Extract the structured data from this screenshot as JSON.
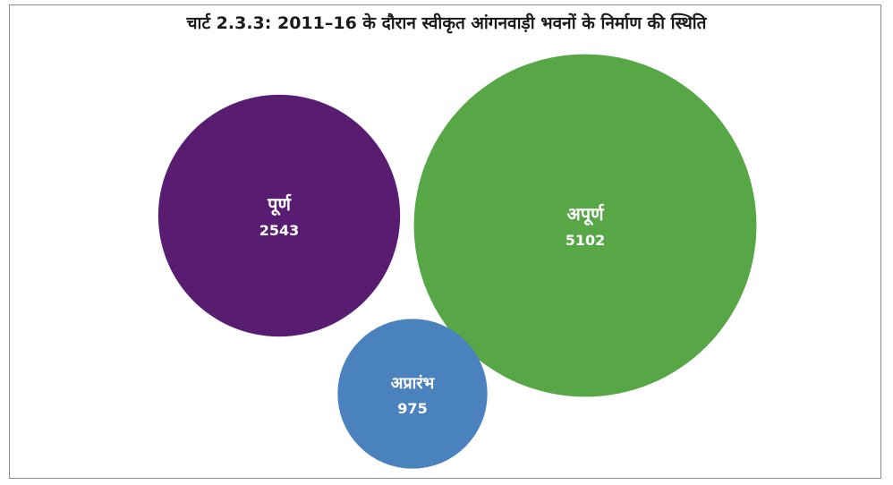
{
  "chart_data": {
    "type": "bubble",
    "title": "चार्ट 2.3.3: 2011–16 के दौरान स्वीकृत आंगनवाड़ी भवनों के निर्माण की स्थिति",
    "series": [
      {
        "name": "पूर्ण",
        "value": 2543,
        "value_label": "2543",
        "color": "#581d70"
      },
      {
        "name": "अपूर्ण",
        "value": 5102,
        "value_label": "5102",
        "color": "#57a747"
      },
      {
        "name": "अप्रारंभ",
        "value": 975,
        "value_label": "975",
        "color": "#4a82be"
      }
    ]
  }
}
